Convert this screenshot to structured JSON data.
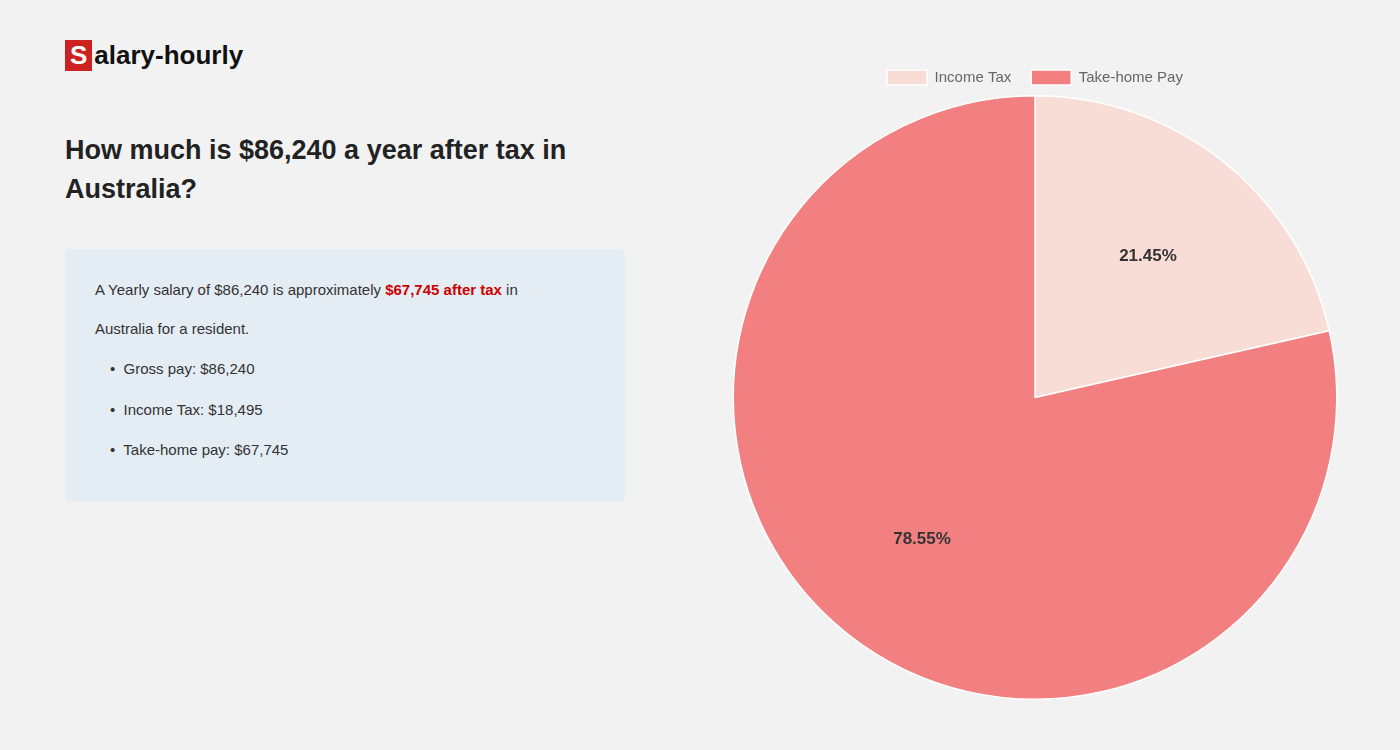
{
  "chart_data": {
    "type": "pie",
    "title": [
      "How much is $86,240 a year after tax in",
      "Australia?"
    ],
    "annotations": [
      [
        {
          "text": "S"
        },
        {
          "text": "alary-hourly"
        }
      ],
      [
        {
          "text": "A Yearly salary of $86,240 is approximately "
        },
        {
          "text": "$67,745 after tax",
          "color": "#cc0000"
        },
        {
          "text": " in"
        }
      ],
      [
        {
          "text": "Australia for a resident."
        }
      ],
      [
        {
          "text": "•  Gross pay: $86,240"
        }
      ],
      [
        {
          "text": "•  Income Tax: $18,495"
        }
      ],
      [
        {
          "text": "•  Take-home pay: $67,745"
        }
      ]
    ],
    "categories": [
      "Income Tax",
      "Take-home Pay"
    ],
    "values": [
      21.45,
      78.55
    ],
    "value_labels": [
      "21.45%",
      "78.55%"
    ],
    "colors": [
      "#f8ddd6",
      "#f28080"
    ],
    "data_labels": true,
    "legend": "top"
  }
}
